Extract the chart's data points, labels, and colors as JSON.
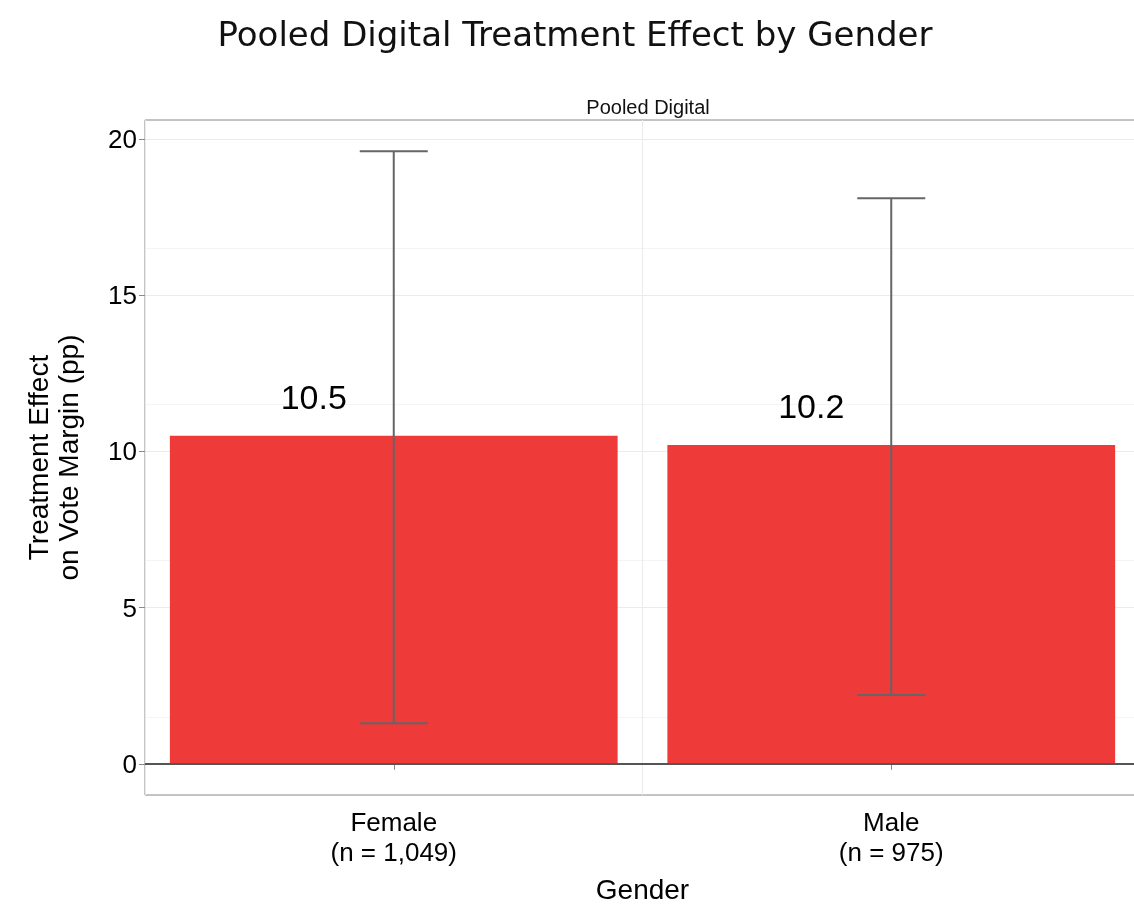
{
  "chart_data": {
    "type": "bar",
    "title": "Pooled Digital Treatment Effect by Gender",
    "subtitle": "Pooled Digital",
    "xlabel": "Gender",
    "ylabel": "Treatment Effect\non Vote Margin (pp)",
    "categories": [
      "Female\n(n = 1,049)",
      "Male\n(n = 975)"
    ],
    "values": [
      10.5,
      10.2
    ],
    "color": "#ee3a39",
    "errors": [
      [
        1.3,
        19.6
      ],
      [
        2.2,
        18.1
      ]
    ],
    "data_labels": true,
    "ylim": [
      -1,
      20.6
    ],
    "yticks": [
      0,
      5,
      10,
      15,
      20
    ],
    "grid": true,
    "ref_lines": [
      {
        "axis": "y",
        "value": 0,
        "color": "#555555"
      }
    ]
  }
}
